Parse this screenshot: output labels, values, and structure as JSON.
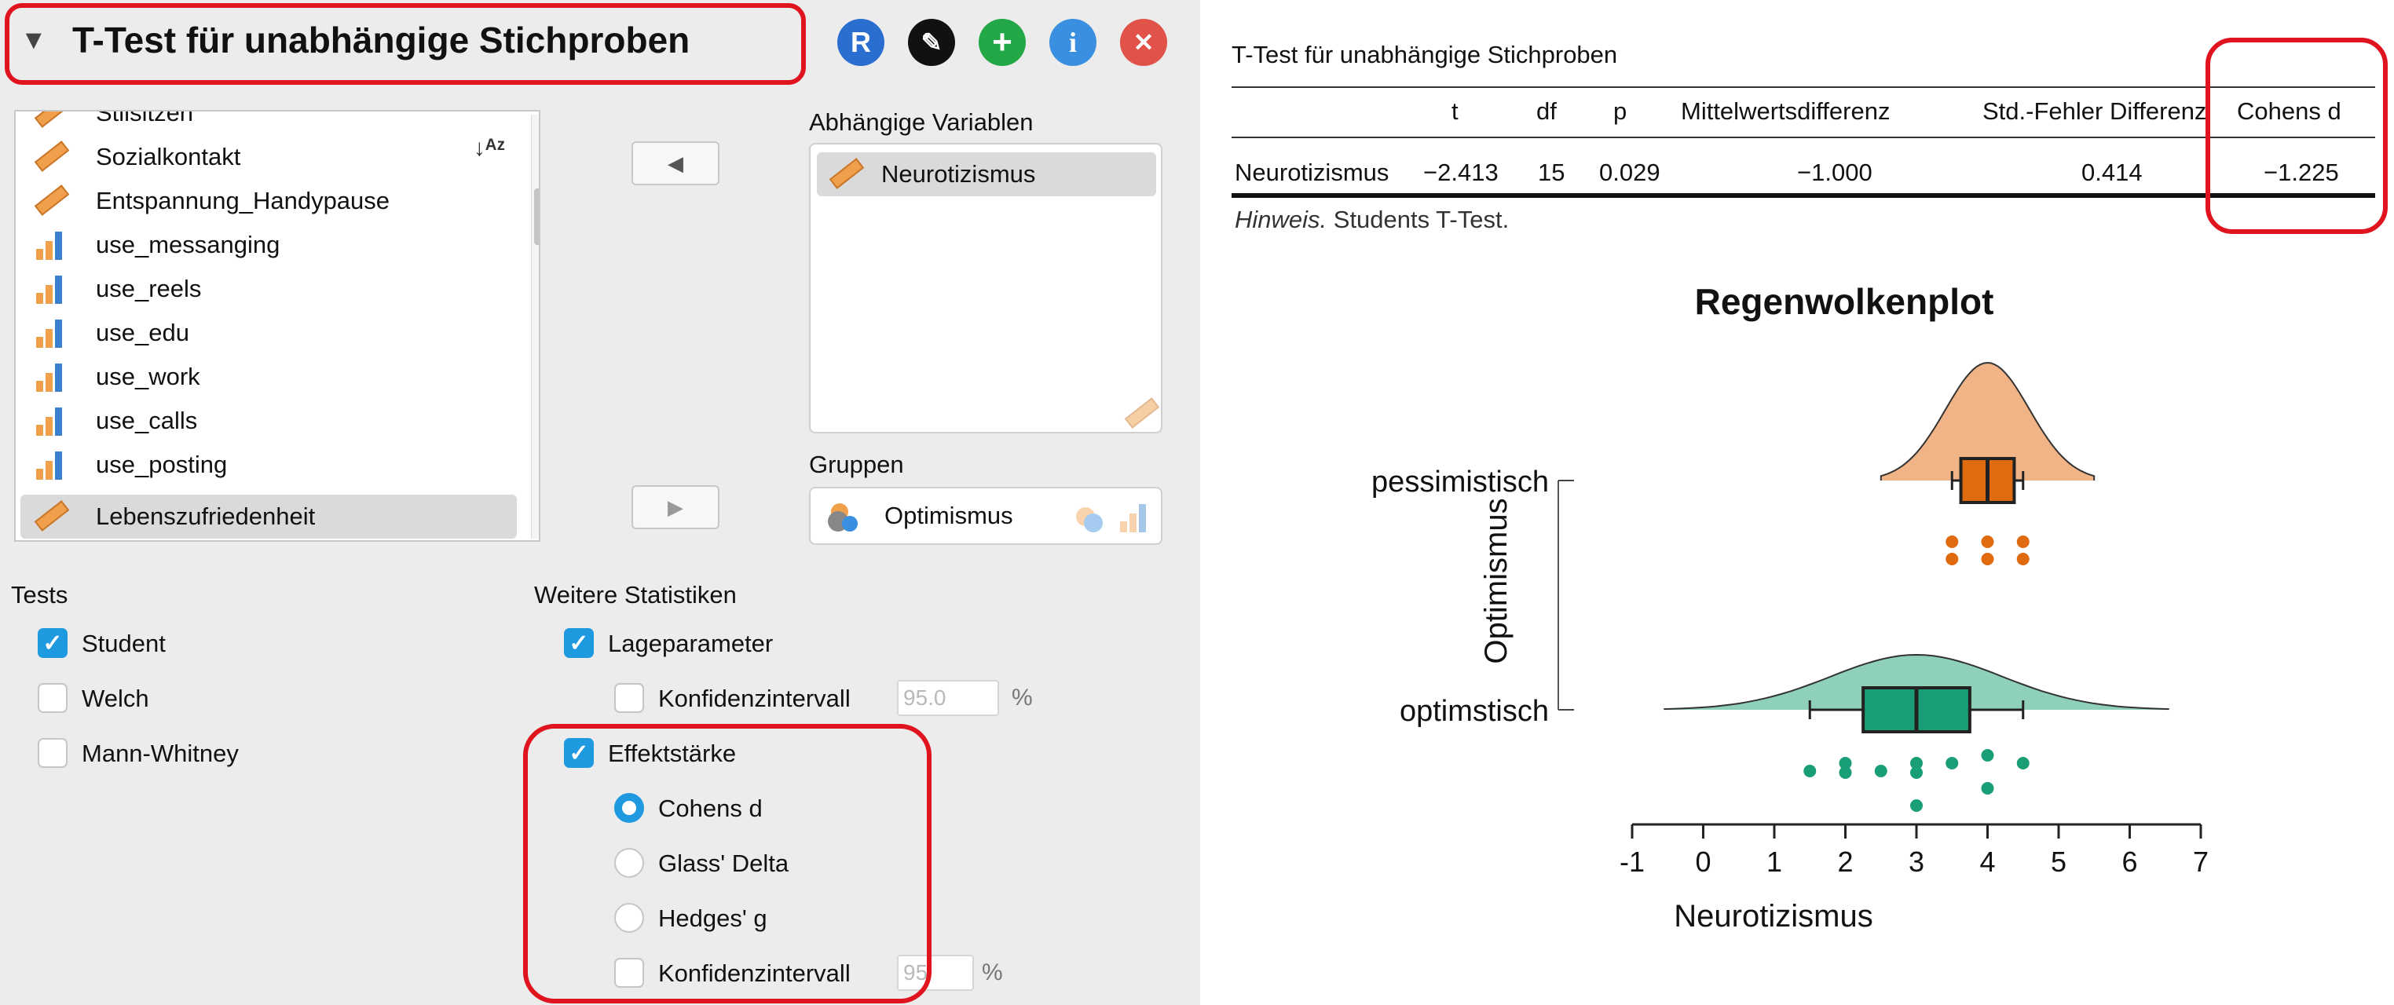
{
  "analysis": {
    "title": "T-Test für unabhängige Stichproben",
    "toolbar": [
      {
        "label": "R",
        "color": "#2a6fd0",
        "icon": "r-icon"
      },
      {
        "label": "✎",
        "color": "#111111",
        "icon": "edit-icon"
      },
      {
        "label": "+",
        "color": "#22a846",
        "icon": "plus-icon"
      },
      {
        "label": "i",
        "color": "#3a8fe0",
        "icon": "info-icon"
      },
      {
        "label": "✕",
        "color": "#e0524a",
        "icon": "close-icon"
      }
    ]
  },
  "variables": [
    {
      "name": "Stilsitzen",
      "type": "scale"
    },
    {
      "name": "Sozialkontakt",
      "type": "scale"
    },
    {
      "name": "Entspannung_Handypause",
      "type": "scale"
    },
    {
      "name": "use_messanging",
      "type": "ordinal"
    },
    {
      "name": "use_reels",
      "type": "ordinal"
    },
    {
      "name": "use_edu",
      "type": "ordinal"
    },
    {
      "name": "use_work",
      "type": "ordinal"
    },
    {
      "name": "use_calls",
      "type": "ordinal"
    },
    {
      "name": "use_posting",
      "type": "ordinal"
    },
    {
      "name": "Lebenszufriedenheit",
      "type": "scale",
      "selected": true
    }
  ],
  "dependent": {
    "label": "Abhängige Variablen",
    "items": [
      "Neurotizismus"
    ]
  },
  "grouping": {
    "label": "Gruppen",
    "value": "Optimismus"
  },
  "tests": {
    "label": "Tests",
    "options": [
      {
        "label": "Student",
        "checked": true
      },
      {
        "label": "Welch",
        "checked": false
      },
      {
        "label": "Mann-Whitney",
        "checked": false
      }
    ]
  },
  "more_stats": {
    "label": "Weitere Statistiken",
    "location": {
      "label": "Lageparameter",
      "checked": true
    },
    "location_ci": {
      "label": "Konfidenzintervall",
      "checked": false,
      "value": "95.0",
      "unit": "%"
    },
    "effect": {
      "label": "Effektstärke",
      "checked": true
    },
    "effect_options": [
      {
        "label": "Cohens d",
        "checked": true
      },
      {
        "label": "Glass' Delta",
        "checked": false
      },
      {
        "label": "Hedges' g",
        "checked": false
      }
    ],
    "effect_ci": {
      "label": "Konfidenzintervall",
      "checked": false,
      "value": "95",
      "unit": "%"
    }
  },
  "results": {
    "table_title": "T-Test für unabhängige Stichproben",
    "columns": [
      "",
      "t",
      "df",
      "p",
      "Mittelwertsdifferenz",
      "Std.-Fehler Differenz",
      "Cohens d"
    ],
    "row": [
      "Neurotizismus",
      "−2.413",
      "15",
      "0.029",
      "−1.000",
      "0.414",
      "−1.225"
    ],
    "note_label": "Hinweis.",
    "note_text": " Students T-Test."
  },
  "chart_data": {
    "type": "raincloud",
    "title": "Regenwolkenplot",
    "xlabel": "Neurotizismus",
    "ylabel": "Optimismus",
    "xlim": [
      -1,
      7
    ],
    "xticks": [
      -1,
      0,
      1,
      2,
      3,
      4,
      5,
      6,
      7
    ],
    "groups": [
      {
        "name": "pessimistisch",
        "color": "#e06a10",
        "cloud_color": "#f0b486",
        "box": {
          "whisker_low": 3.5,
          "q1": 3.625,
          "median": 4.0,
          "q3": 4.375,
          "whisker_high": 4.5
        },
        "points": [
          3.5,
          3.5,
          4.0,
          4.0,
          4.5,
          4.5
        ]
      },
      {
        "name": "optimstisch",
        "color": "#1a9e77",
        "cloud_color": "#8fd0b8",
        "box": {
          "whisker_low": 1.5,
          "q1": 2.25,
          "median": 3.0,
          "q3": 3.75,
          "whisker_high": 4.5
        },
        "points": [
          1.5,
          2.0,
          2.0,
          2.5,
          3.0,
          3.0,
          3.0,
          3.5,
          4.0,
          4.0,
          4.5
        ]
      }
    ]
  }
}
